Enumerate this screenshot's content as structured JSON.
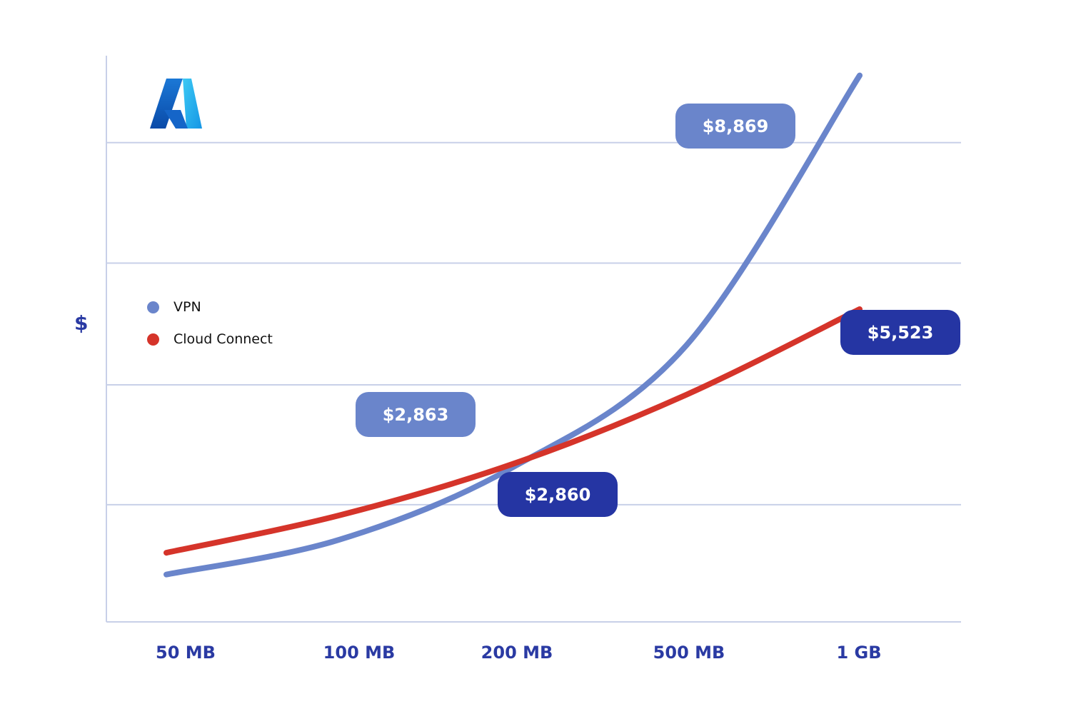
{
  "chart_data": {
    "type": "line",
    "categories": [
      "50 MB",
      "100 MB",
      "200 MB",
      "500 MB",
      "1 GB"
    ],
    "ylabel": "$",
    "xlabel": "",
    "grid": true,
    "legend_position": "left",
    "series": [
      {
        "name": "VPN",
        "color": "#6a85cb",
        "values": [
          -0.28,
          0.25,
          1.35,
          3.2,
          7.3
        ]
      },
      {
        "name": "Cloud Connect",
        "color": "#d5342a",
        "values": [
          0.05,
          0.62,
          1.4,
          2.45,
          3.75
        ]
      }
    ],
    "ylim": [
      -1.0,
      7.6
    ],
    "callouts": [
      {
        "text": "$8,869",
        "series": "VPN"
      },
      {
        "text": "$2,863",
        "series": "VPN"
      },
      {
        "text": "$2,860",
        "series": "Cloud Connect"
      },
      {
        "text": "$5,523",
        "series": "Cloud Connect"
      }
    ]
  },
  "logo": {
    "name": "azure-logo"
  },
  "colors": {
    "axis_text": "#2a3aa3",
    "grid": "#c8d0e8",
    "vpn_callout": "#6a85cb",
    "cc_callout": "#2535a3"
  }
}
